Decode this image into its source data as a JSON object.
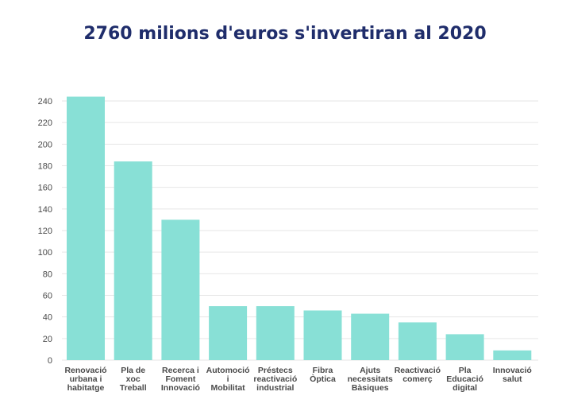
{
  "chart_data": {
    "type": "bar",
    "title": "2760 milions d'euros s'invertiran al 2020",
    "xlabel": "",
    "ylabel": "",
    "ylim": [
      0,
      250
    ],
    "yticks": [
      0,
      20,
      40,
      60,
      80,
      100,
      120,
      140,
      160,
      180,
      200,
      220,
      240
    ],
    "grid": true,
    "bar_color": "#88e0d6",
    "categories": [
      [
        "Renovació",
        "urbana i",
        "habitatge"
      ],
      [
        "Pla de",
        "xoc",
        "Treball"
      ],
      [
        "Recerca i",
        "Foment",
        "Innovació"
      ],
      [
        "Automoció",
        "i",
        "Mobilitat"
      ],
      [
        "Préstecs",
        "reactivació",
        "industrial"
      ],
      [
        "Fibra",
        "Òptica"
      ],
      [
        "Ajuts",
        "necessitats",
        "Bàsiques"
      ],
      [
        "Reactivació",
        "comerç"
      ],
      [
        "Pla",
        "Educació",
        "digital"
      ],
      [
        "Innovació",
        "salut"
      ]
    ],
    "values": [
      244,
      184,
      130,
      50,
      50,
      46,
      43,
      35,
      24,
      9
    ]
  }
}
